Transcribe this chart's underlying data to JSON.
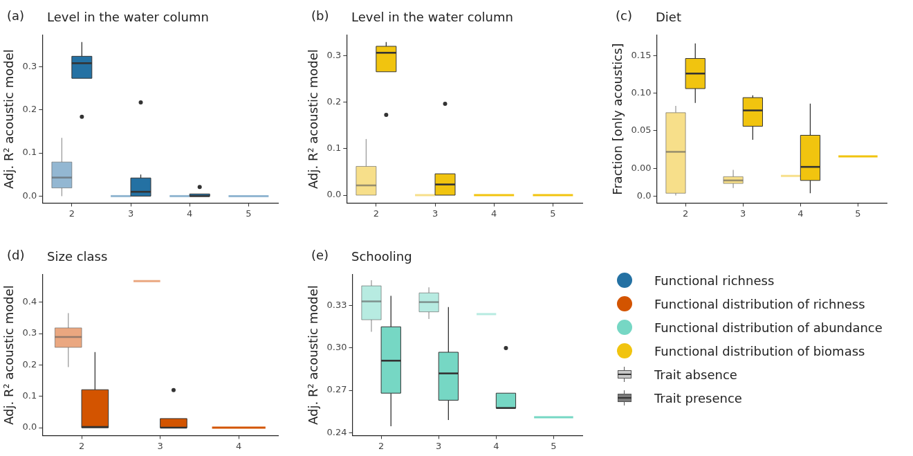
{
  "chart_data": [
    {
      "type": "box",
      "title": "Level in the water column",
      "annotations": [
        "(a)"
      ],
      "ylabel": "Adj. R² acoustic model",
      "categories": [
        "2",
        "3",
        "4",
        "5"
      ],
      "ylim": [
        -0.016,
        0.373
      ],
      "yticks": [
        {
          "value": 0,
          "label": "0.0"
        },
        {
          "value": 0.1,
          "label": "0.1"
        },
        {
          "value": 0.2,
          "label": "0.2"
        },
        {
          "value": 0.3,
          "label": "0.3"
        }
      ],
      "series": [
        {
          "color": "#93b7d2",
          "boxes": [
            {
              "low": 0,
              "q1": 0.019,
              "median": 0.043,
              "q3": 0.079,
              "high": 0.135
            },
            {
              "low": 0,
              "q1": 0,
              "median": 0,
              "q3": 0,
              "high": 0
            },
            {
              "low": 0,
              "q1": 0,
              "median": 0,
              "q3": 0,
              "high": 0
            },
            {
              "low": 0,
              "q1": 0,
              "median": 0,
              "q3": 0,
              "high": 0
            }
          ]
        },
        {
          "color": "#2471a3",
          "boxes": [
            {
              "low": 0.273,
              "q1": 0.273,
              "median": 0.308,
              "q3": 0.324,
              "high": 0.357,
              "outliers": [
                0.184
              ]
            },
            {
              "low": 0,
              "q1": 0,
              "median": 0.01,
              "q3": 0.042,
              "high": 0.05,
              "outliers": [
                0.217
              ]
            },
            {
              "low": 0,
              "q1": 0,
              "median": 0,
              "q3": 0.005,
              "high": 0.005,
              "outliers": [
                0.021
              ]
            },
            null
          ]
        }
      ]
    },
    {
      "type": "box",
      "title": "Level in the water column",
      "annotations": [
        "(b)"
      ],
      "ylabel": "Adj. R² acoustic model",
      "categories": [
        "2",
        "3",
        "4",
        "5"
      ],
      "ylim": [
        -0.017,
        0.345
      ],
      "yticks": [
        {
          "value": 0,
          "label": "0.0"
        },
        {
          "value": 0.1,
          "label": "0.1"
        },
        {
          "value": 0.2,
          "label": "0.2"
        },
        {
          "value": 0.3,
          "label": "0.3"
        }
      ],
      "series": [
        {
          "color": "#f7df8a",
          "boxes": [
            {
              "low": 0,
              "q1": 0,
              "median": 0.021,
              "q3": 0.062,
              "high": 0.121
            },
            {
              "low": 0,
              "q1": 0,
              "median": 0,
              "q3": 0,
              "high": 0
            },
            null,
            null
          ]
        },
        {
          "color": "#f1c40f",
          "boxes": [
            {
              "low": 0.266,
              "q1": 0.266,
              "median": 0.307,
              "q3": 0.321,
              "high": 0.33,
              "outliers": [
                0.173
              ]
            },
            {
              "low": 0,
              "q1": 0,
              "median": 0.023,
              "q3": 0.046,
              "high": 0.046,
              "outliers": [
                0.197
              ]
            },
            {
              "low": 0,
              "q1": 0,
              "median": 0,
              "q3": 0,
              "high": 0
            },
            {
              "low": 0,
              "q1": 0,
              "median": 0,
              "q3": 0,
              "high": 0
            }
          ]
        }
      ]
    },
    {
      "type": "box",
      "title": "Diet",
      "annotations": [
        "(c)"
      ],
      "ylabel": "Fraction [only acoustics]",
      "categories": [
        "2",
        "3",
        "4",
        "5"
      ],
      "ylim": [
        -0.046,
        0.177
      ],
      "yticks": [
        {
          "value": -0.037,
          "label": "0.0"
        },
        {
          "value": 0,
          "label": "0.00"
        },
        {
          "value": 0.05,
          "label": "0.05"
        },
        {
          "value": 0.1,
          "label": "0.10"
        },
        {
          "value": 0.15,
          "label": "0.15"
        }
      ],
      "series": [
        {
          "color": "#f7df8a",
          "boxes": [
            {
              "low": -0.036,
              "q1": -0.033,
              "median": 0.022,
              "q3": 0.074,
              "high": 0.083
            },
            {
              "low": -0.026,
              "q1": -0.02,
              "median": -0.016,
              "q3": -0.011,
              "high": -0.002
            },
            {
              "low": -0.01,
              "q1": -0.01,
              "median": -0.01,
              "q3": -0.01,
              "high": -0.01
            },
            null
          ]
        },
        {
          "color": "#f1c40f",
          "boxes": [
            {
              "low": 0.087,
              "q1": 0.106,
              "median": 0.126,
              "q3": 0.146,
              "high": 0.166
            },
            {
              "low": 0.038,
              "q1": 0.056,
              "median": 0.077,
              "q3": 0.094,
              "high": 0.097
            },
            {
              "low": -0.033,
              "q1": -0.016,
              "median": 0.002,
              "q3": 0.044,
              "high": 0.086
            },
            {
              "low": 0.016,
              "q1": 0.016,
              "median": 0.016,
              "q3": 0.016,
              "high": 0.016
            }
          ]
        }
      ]
    },
    {
      "type": "box",
      "title": "Size class",
      "annotations": [
        "(d)"
      ],
      "ylabel": "Adj. R² acoustic model",
      "categories": [
        "2",
        "3",
        "4"
      ],
      "ylim": [
        -0.025,
        0.488
      ],
      "yticks": [
        {
          "value": 0,
          "label": "0.0"
        },
        {
          "value": 0.1,
          "label": "0.1"
        },
        {
          "value": 0.2,
          "label": "0.2"
        },
        {
          "value": 0.3,
          "label": "0.3"
        },
        {
          "value": 0.4,
          "label": "0.4"
        }
      ],
      "series": [
        {
          "color": "#eaa780",
          "boxes": [
            {
              "low": 0.193,
              "q1": 0.256,
              "median": 0.289,
              "q3": 0.318,
              "high": 0.365
            },
            {
              "low": 0.467,
              "q1": 0.467,
              "median": 0.467,
              "q3": 0.467,
              "high": 0.467
            },
            null
          ]
        },
        {
          "color": "#d35400",
          "boxes": [
            {
              "low": 0,
              "q1": 0,
              "median": 0.002,
              "q3": 0.121,
              "high": 0.241
            },
            {
              "low": 0,
              "q1": 0,
              "median": 0,
              "q3": 0.029,
              "high": 0.029,
              "outliers": [
                0.12
              ]
            },
            {
              "low": 0,
              "q1": 0,
              "median": 0,
              "q3": 0,
              "high": 0
            }
          ]
        }
      ]
    },
    {
      "type": "box",
      "title": "Schooling",
      "annotations": [
        "(e)"
      ],
      "ylabel": "Adj. R² acoustic model",
      "categories": [
        "2",
        "3",
        "4",
        "5"
      ],
      "ylim": [
        0.238,
        0.352
      ],
      "yticks": [
        {
          "value": 0.24,
          "label": "0.24"
        },
        {
          "value": 0.27,
          "label": "0.27"
        },
        {
          "value": 0.3,
          "label": "0.30"
        },
        {
          "value": 0.33,
          "label": "0.33"
        }
      ],
      "series": [
        {
          "color": "#b7ebe1",
          "boxes": [
            {
              "low": 0.3115,
              "q1": 0.32,
              "median": 0.333,
              "q3": 0.344,
              "high": 0.348
            },
            {
              "low": 0.3205,
              "q1": 0.3256,
              "median": 0.3325,
              "q3": 0.339,
              "high": 0.343
            },
            {
              "low": 0.324,
              "q1": 0.324,
              "median": 0.324,
              "q3": 0.324,
              "high": 0.324
            },
            null
          ]
        },
        {
          "color": "#76d7c4",
          "boxes": [
            {
              "low": 0.2446,
              "q1": 0.268,
              "median": 0.291,
              "q3": 0.315,
              "high": 0.337
            },
            {
              "low": 0.249,
              "q1": 0.263,
              "median": 0.282,
              "q3": 0.297,
              "high": 0.329
            },
            {
              "low": 0.2575,
              "q1": 0.2575,
              "median": 0.2575,
              "q3": 0.268,
              "high": 0.268,
              "outliers": [
                0.3
              ]
            },
            {
              "low": 0.251,
              "q1": 0.251,
              "median": 0.251,
              "q3": 0.251,
              "high": 0.251
            }
          ]
        }
      ]
    },
    {
      "type": "other",
      "categories": [
        "Functional richness",
        "Functional distribution of richness",
        "Functional distribution of abundance",
        "Functional distribution of biomass",
        "Trait absence",
        "Trait presence"
      ],
      "colors": [
        "#2471a3",
        "#d35400",
        "#76d7c4",
        "#f1c40f",
        "#c8c8c8",
        "#7a7a7a"
      ]
    }
  ]
}
